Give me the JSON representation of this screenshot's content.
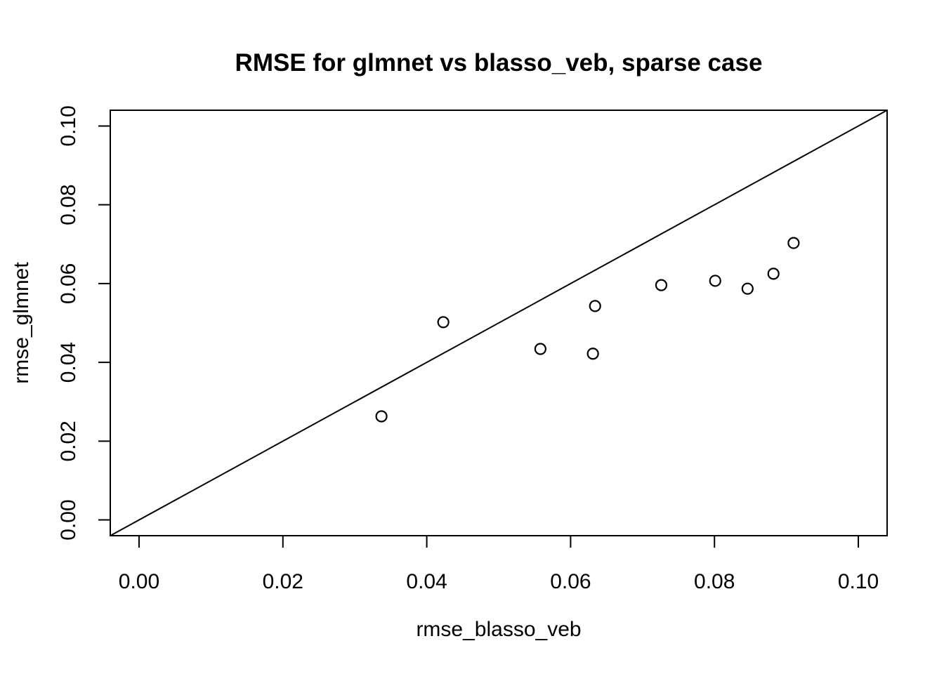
{
  "chart_data": {
    "type": "scatter",
    "title": "RMSE for glmnet vs blasso_veb, sparse case",
    "xlabel": "rmse_blasso_veb",
    "ylabel": "rmse_glmnet",
    "xlim": [
      -0.004,
      0.104
    ],
    "ylim": [
      -0.004,
      0.104
    ],
    "x_tick_values": [
      0.0,
      0.02,
      0.04,
      0.06,
      0.08,
      0.1
    ],
    "x_tick_labels": [
      "0.00",
      "0.02",
      "0.04",
      "0.06",
      "0.08",
      "0.10"
    ],
    "y_tick_values": [
      0.0,
      0.02,
      0.04,
      0.06,
      0.08,
      0.1
    ],
    "y_tick_labels": [
      "0.00",
      "0.02",
      "0.04",
      "0.06",
      "0.08",
      "0.10"
    ],
    "grid": false,
    "legend": null,
    "marker": "open-circle",
    "reference_line": {
      "intercept": 0,
      "slope": 1,
      "description": "identity line y = x"
    },
    "colors": {
      "points": "#000000",
      "line": "#000000",
      "text": "#000000",
      "background": "#ffffff"
    },
    "points": [
      {
        "x": 0.0337,
        "y": 0.0263
      },
      {
        "x": 0.0423,
        "y": 0.0502
      },
      {
        "x": 0.0558,
        "y": 0.0434
      },
      {
        "x": 0.0631,
        "y": 0.0422
      },
      {
        "x": 0.0634,
        "y": 0.0543
      },
      {
        "x": 0.0726,
        "y": 0.0596
      },
      {
        "x": 0.0801,
        "y": 0.0607
      },
      {
        "x": 0.0846,
        "y": 0.0587
      },
      {
        "x": 0.0882,
        "y": 0.0625
      },
      {
        "x": 0.091,
        "y": 0.0703
      }
    ]
  }
}
